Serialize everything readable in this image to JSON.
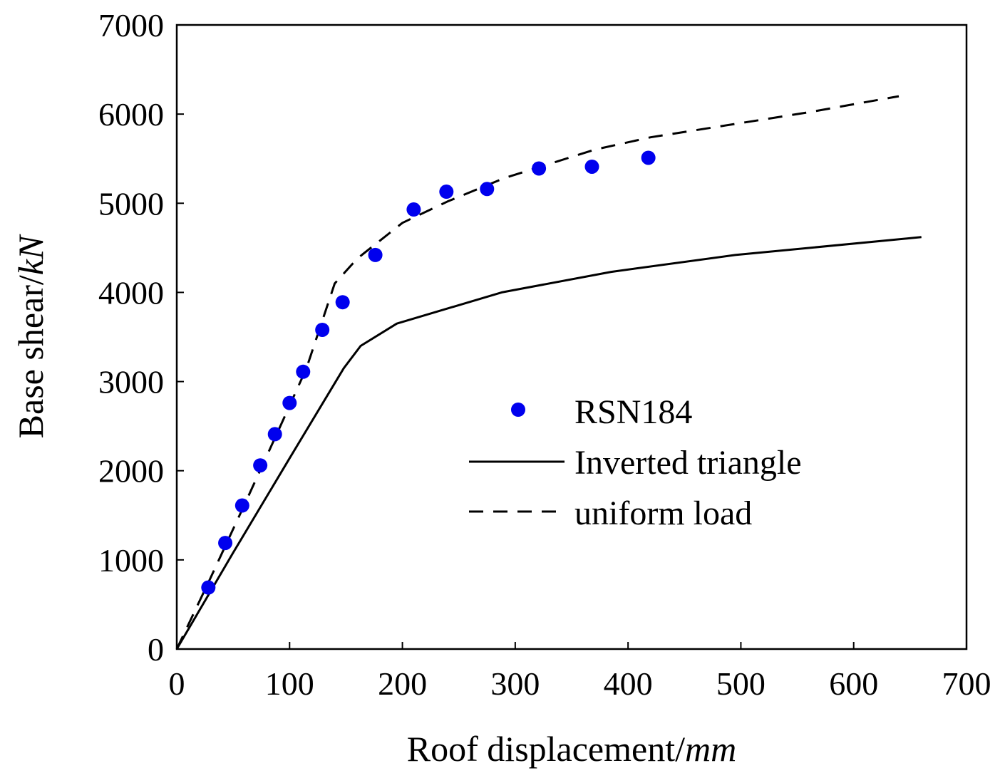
{
  "chart_data": {
    "type": "line",
    "title": "",
    "xlabel": {
      "main": "Roof displacement/",
      "unit": "mm"
    },
    "ylabel": {
      "main": "Base shear/",
      "unit": "kN"
    },
    "xlim": [
      0,
      700
    ],
    "ylim": [
      0,
      7000
    ],
    "x_ticks": [
      0,
      100,
      200,
      300,
      400,
      500,
      600,
      700
    ],
    "y_ticks": [
      0,
      1000,
      2000,
      3000,
      4000,
      5000,
      6000,
      7000
    ],
    "grid": false,
    "legend_position": "center-right",
    "series": [
      {
        "name": "RSN184",
        "style": "scatter",
        "color": "#0000ee",
        "x": [
          28,
          43,
          58,
          74,
          87,
          100,
          112,
          129,
          147,
          176,
          210,
          239,
          275,
          321,
          368,
          418
        ],
        "y": [
          690,
          1190,
          1610,
          2060,
          2410,
          2760,
          3110,
          3580,
          3890,
          4420,
          4930,
          5130,
          5160,
          5390,
          5410,
          5510
        ]
      },
      {
        "name": "Inverted triangle",
        "style": "solid",
        "color": "#000000",
        "x": [
          0,
          50,
          100,
          148,
          163,
          195,
          288,
          385,
          495,
          660
        ],
        "y": [
          0,
          1080,
          2140,
          3150,
          3400,
          3650,
          4000,
          4230,
          4420,
          4620
        ]
      },
      {
        "name": "uniform load",
        "style": "dashed",
        "color": "#000000",
        "x": [
          0,
          30,
          60,
          90,
          115,
          140,
          160,
          200,
          240,
          290,
          370,
          420,
          500,
          560,
          640
        ],
        "y": [
          0,
          800,
          1620,
          2450,
          3150,
          4100,
          4380,
          4780,
          5020,
          5280,
          5600,
          5740,
          5900,
          6020,
          6200
        ]
      }
    ]
  }
}
